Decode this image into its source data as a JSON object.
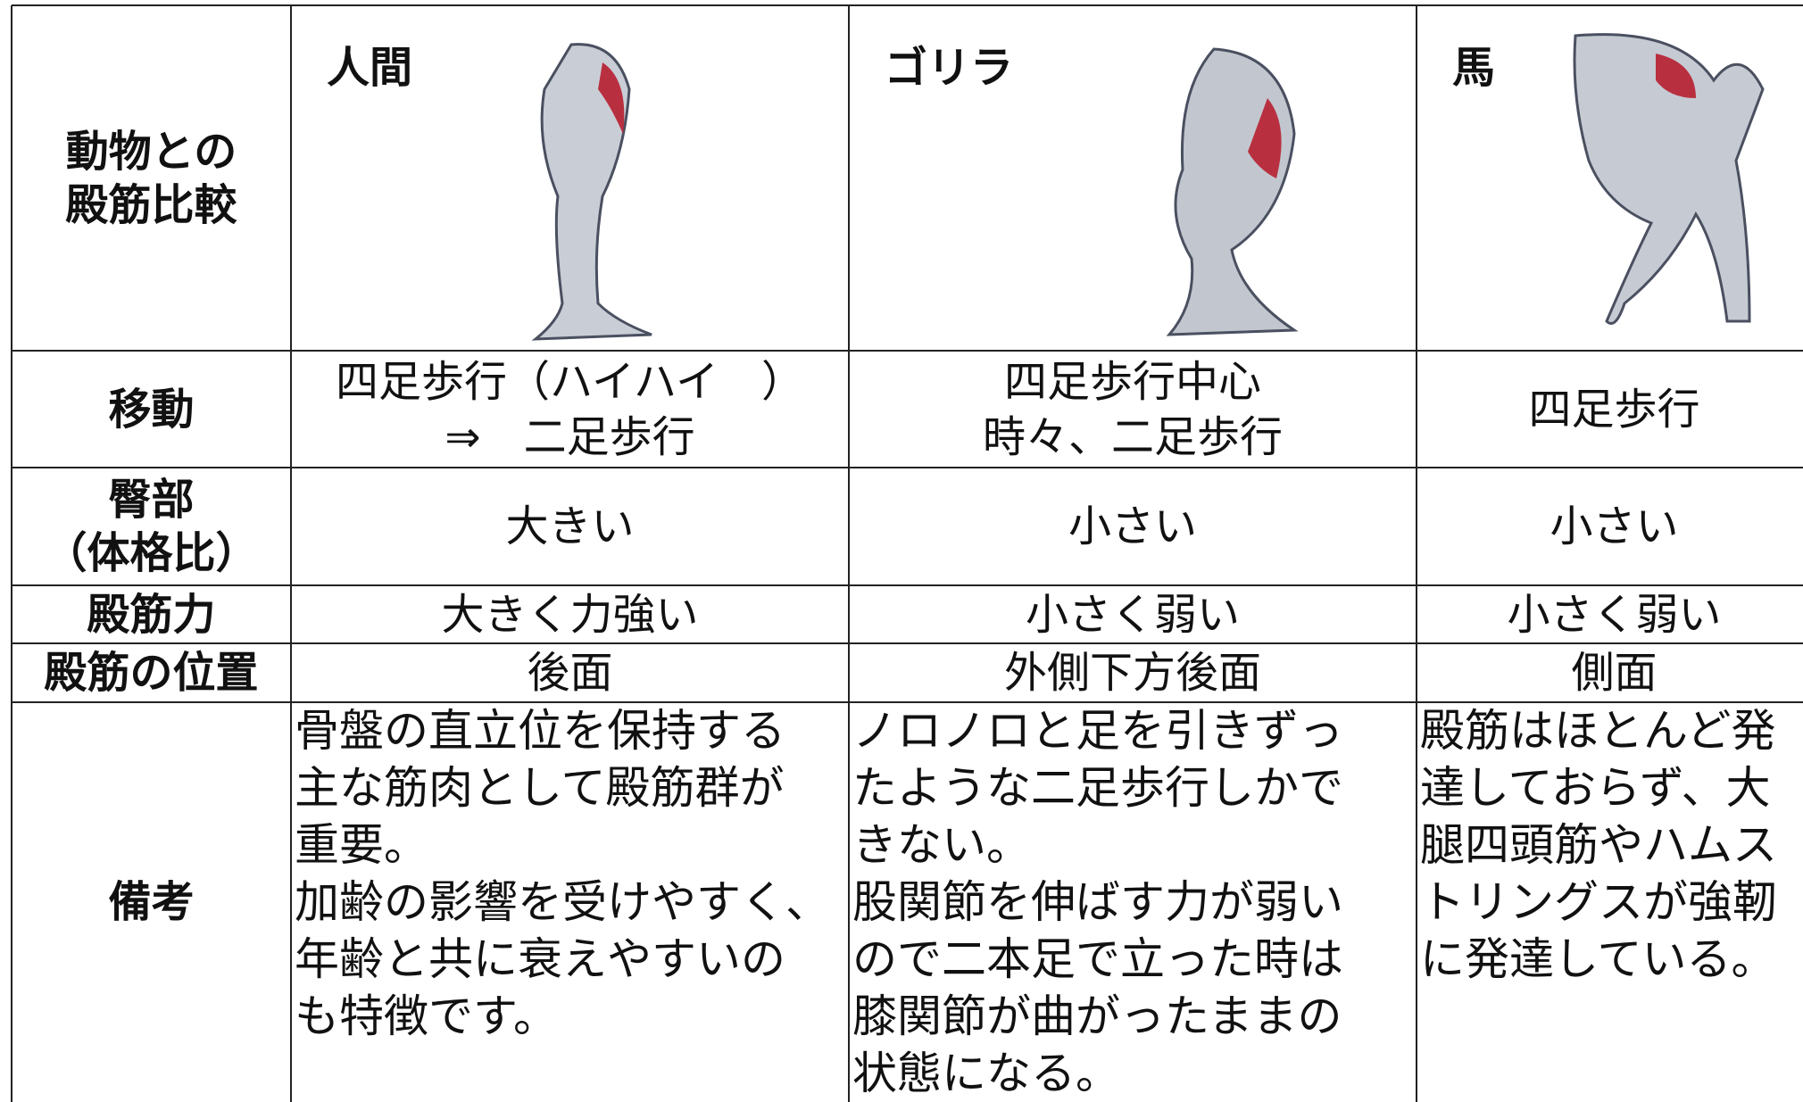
{
  "header": {
    "label_lines": [
      "動物との",
      "殿筋比較"
    ],
    "animals": [
      "人間",
      "ゴリラ",
      "馬"
    ]
  },
  "rows": [
    {
      "label_lines": [
        "移動"
      ],
      "cells": [
        [
          "四足歩行（ハイハイ　）",
          "⇒　二足歩行"
        ],
        [
          "四足歩行中心",
          "時々、二足歩行"
        ],
        [
          "四足歩行"
        ]
      ]
    },
    {
      "label_lines": [
        "臀部",
        "（体格比）"
      ],
      "cells": [
        [
          "大きい"
        ],
        [
          "小さい"
        ],
        [
          "小さい"
        ]
      ]
    },
    {
      "label_lines": [
        "殿筋力"
      ],
      "cells": [
        [
          "大きく力強い"
        ],
        [
          "小さく弱い"
        ],
        [
          "小さく弱い"
        ]
      ]
    },
    {
      "label_lines": [
        "殿筋の位置"
      ],
      "cells": [
        [
          "後面"
        ],
        [
          "外側下方後面"
        ],
        [
          "側面"
        ]
      ]
    },
    {
      "label_lines": [
        "備考"
      ],
      "cells": [
        [
          "骨盤の直立位を保持する",
          "主な筋肉として殿筋群が",
          "重要。",
          "加齢の影響を受けやすく、",
          "年齢と共に衰えやすいの",
          "も特徴です。"
        ],
        [
          "ノロノロと足を引きずっ",
          "たような二足歩行しかで",
          "きない。",
          "股関節を伸ばす力が弱い",
          "ので二本足で立った時は",
          "膝関節が曲がったままの",
          "状態になる。"
        ],
        [
          "殿筋はほとんど発",
          "達しておらず、大",
          "腿四頭筋やハムス",
          "トリングスが強靭",
          "に発達している。"
        ]
      ]
    }
  ]
}
